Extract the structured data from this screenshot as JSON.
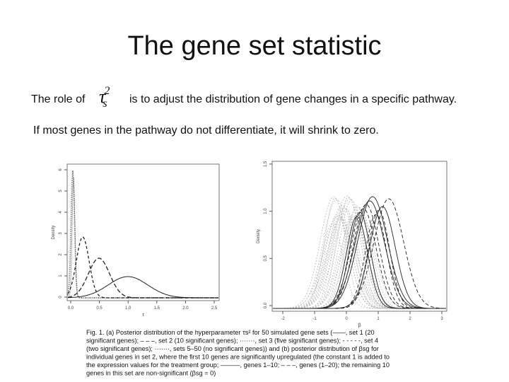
{
  "slide": {
    "title": "The gene set statistic",
    "line1_before": "The role of",
    "formula": {
      "symbol": "τ",
      "sub": "s",
      "sup": "2"
    },
    "line1_after": "is to adjust the distribution of gene changes in a specific pathway.",
    "line2": "If most genes in the pathway do not differentiate, it will shrink to zero."
  },
  "figure": {
    "left": {
      "ylabel": "Density",
      "xlabel": "τ",
      "yticks": [
        "0",
        "1",
        "2",
        "3",
        "4",
        "5",
        "6"
      ],
      "xticks": [
        "0.0",
        "0.5",
        "1.0",
        "1.5",
        "2.0",
        "2.5"
      ]
    },
    "right": {
      "ylabel": "Density",
      "xlabel": "β",
      "yticks": [
        "0.0",
        "0.5",
        "1.0",
        "1.5"
      ],
      "xticks": [
        "-2",
        "-1",
        "0",
        "1",
        "2",
        "3"
      ]
    },
    "caption": [
      "Fig. 1.   (a) Posterior distribution of the hyperparameter τs² for 50 simulated gene sets (——, set 1 (20",
      "significant genes); – – –, set 2 (10 significant genes); ·······, set 3 (five significant genes); - - - - -, set 4",
      "(two significant genes); ·······, sets 5–50 (no significant genes)) and (b) posterior distribution of βsg for",
      "individual genes in set 2, where the first 10 genes are significantly upregulated (the constant 1 is added to",
      "the expression values for the treatment group; ———, genes 1–10; – – –, genes (1–20); the remaining 10",
      "genes in this set are non-significant (βsg = 0)"
    ]
  }
}
